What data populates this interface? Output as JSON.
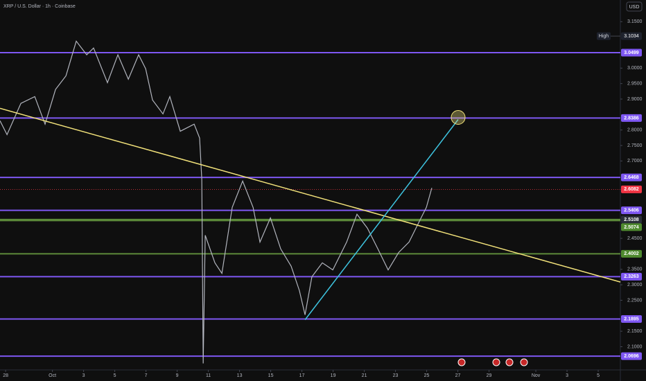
{
  "chart_data": {
    "type": "line",
    "title": "XRP / U.S. Dollar · 1h · Coinbase",
    "currency": "USD",
    "x": [
      -0.36,
      0.09,
      0.98,
      1.87,
      2.53,
      3.2,
      3.87,
      4.53,
      5.2,
      5.64,
      6.53,
      7.2,
      7.87,
      8.53,
      8.98,
      9.42,
      10.09,
      10.53,
      11.2,
      12.09,
      12.44,
      12.58,
      12.67,
      12.8,
      13.42,
      13.87,
      14.53,
      15.2,
      15.87,
      16.31,
      16.98,
      17.64,
      18.31,
      18.84,
      19.2,
      19.64,
      20.31,
      20.98,
      21.87,
      22.53,
      23.2,
      23.87,
      24.53,
      25.2,
      25.87,
      26.53,
      26.98,
      27.33
    ],
    "series": [
      {
        "color": "#b2b5be",
        "values": [
          2.83,
          2.785,
          2.886,
          2.908,
          2.819,
          2.931,
          2.975,
          3.087,
          3.043,
          3.065,
          2.953,
          3.043,
          2.964,
          3.043,
          2.998,
          2.897,
          2.852,
          2.908,
          2.796,
          2.819,
          2.774,
          2.64,
          2.046,
          2.46,
          2.371,
          2.337,
          2.55,
          2.635,
          2.55,
          2.438,
          2.516,
          2.416,
          2.36,
          2.281,
          2.203,
          2.326,
          2.371,
          2.348,
          2.438,
          2.528,
          2.483,
          2.416,
          2.348,
          2.404,
          2.438,
          2.505,
          2.55,
          2.613
        ]
      }
    ],
    "xlim": [
      -0.36,
      39.42
    ],
    "ylim": [
      2.025,
      3.22
    ],
    "xticks": [
      {
        "value": 0,
        "label": "28"
      },
      {
        "value": 3,
        "label": "Oct"
      },
      {
        "value": 5,
        "label": "3"
      },
      {
        "value": 7,
        "label": "5"
      },
      {
        "value": 9,
        "label": "7"
      },
      {
        "value": 11,
        "label": "9"
      },
      {
        "value": 13,
        "label": "11"
      },
      {
        "value": 15,
        "label": "13"
      },
      {
        "value": 17,
        "label": "15"
      },
      {
        "value": 19,
        "label": "17"
      },
      {
        "value": 21,
        "label": "19"
      },
      {
        "value": 23,
        "label": "21"
      },
      {
        "value": 25,
        "label": "23"
      },
      {
        "value": 27,
        "label": "25"
      },
      {
        "value": 29,
        "label": "27"
      },
      {
        "value": 31,
        "label": "29"
      },
      {
        "value": 34,
        "label": "Nov"
      },
      {
        "value": 36,
        "label": "3"
      },
      {
        "value": 38,
        "label": "5"
      }
    ],
    "yticks": [
      {
        "value": 3.15,
        "label": "3.1500"
      },
      {
        "value": 3.0,
        "label": "3.0000"
      },
      {
        "value": 2.95,
        "label": "2.9500"
      },
      {
        "value": 2.9,
        "label": "2.9000"
      },
      {
        "value": 2.8,
        "label": "2.8000"
      },
      {
        "value": 2.75,
        "label": "2.7500"
      },
      {
        "value": 2.7,
        "label": "2.7000"
      },
      {
        "value": 2.45,
        "label": "2.4500"
      },
      {
        "value": 2.35,
        "label": "2.3500"
      },
      {
        "value": 2.3,
        "label": "2.3000"
      },
      {
        "value": 2.25,
        "label": "2.2500"
      },
      {
        "value": 2.15,
        "label": "2.1500"
      },
      {
        "value": 2.1,
        "label": "2.1000"
      }
    ],
    "grid": false,
    "high": {
      "label": "High",
      "value": 3.1034
    },
    "current_price": {
      "value": 2.6082,
      "color": "#f23645"
    },
    "levels": [
      {
        "value": 3.0499,
        "color": "#7e57f2",
        "label_color": "#7e57f2"
      },
      {
        "value": 2.8386,
        "color": "#7e57f2",
        "label_color": "#7e57f2"
      },
      {
        "value": 2.6468,
        "color": "#7e57f2",
        "label_color": "#7e57f2"
      },
      {
        "value": 2.5406,
        "color": "#7e57f2",
        "label_color": "#7e57f2"
      },
      {
        "value": 2.5108,
        "color": "#5d8a3a",
        "label_color": "#2a2e39"
      },
      {
        "value": 2.5074,
        "color": "#5d8a3a",
        "label_color": "#4f8a2f"
      },
      {
        "value": 2.4002,
        "color": "#5d8a3a",
        "label_color": "#4f8a2f"
      },
      {
        "value": 2.3263,
        "color": "#7e57f2",
        "label_color": "#7e57f2"
      },
      {
        "value": 2.1895,
        "color": "#7e57f2",
        "label_color": "#7e57f2"
      },
      {
        "value": 2.0696,
        "color": "#7e57f2",
        "label_color": "#7e57f2"
      }
    ],
    "trendlines": [
      {
        "color": "#f2e27a",
        "x": [
          -0.36,
          39.42
        ],
        "y": [
          2.87,
          2.309
        ]
      },
      {
        "color": "#3ec4e0",
        "x": [
          19.2,
          29.02
        ],
        "y": [
          2.187,
          2.834
        ]
      }
    ]
  }
}
